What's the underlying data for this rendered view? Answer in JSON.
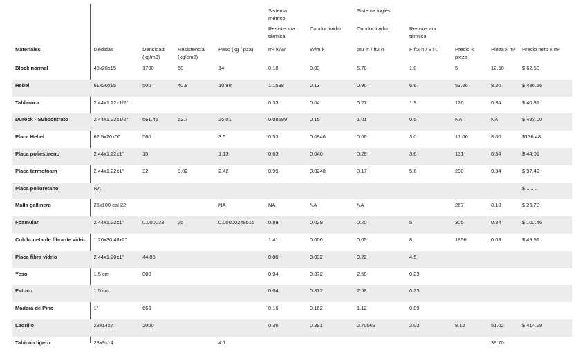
{
  "header": {
    "rows": [
      [
        null,
        null,
        null,
        null,
        null,
        "Sistema métrico",
        null,
        "Sistema inglés",
        null,
        null,
        null,
        null
      ],
      [
        null,
        null,
        null,
        null,
        null,
        "Resistencia térmica",
        "Conductividad",
        "Conductividad",
        "Resistencia térmica",
        null,
        null,
        null
      ],
      [
        "Materiales",
        "Medidas",
        "Densidad (kg/m3)",
        "Resistencia (kg/cm2)",
        "Peso (kg / pza)",
        "m² K/W",
        "W/m k",
        "btu in / ft2 h",
        "F ft2 h / BTU",
        "Precio x pieza",
        "Pieza x m²",
        "Precio neto x m²"
      ]
    ]
  },
  "table": {
    "rows": [
      [
        "Block normal",
        "40x20x15",
        "1700",
        "60",
        "14",
        "0.18",
        "0.83",
        "5.78",
        "1.0",
        "5",
        "12.50",
        "$ 62.50"
      ],
      [
        "Hebel",
        "61x20x15",
        "500",
        "40.8",
        "10.98",
        "1.1538",
        "0.13",
        "0.90",
        "6.6",
        "53.26",
        "8.20",
        "$ 436.56"
      ],
      [
        "Tablaroca",
        "2.44x1.22x1/2\"",
        null,
        null,
        null,
        "0.33",
        "0.04",
        "0.27",
        "1.9",
        "120",
        "0.34",
        "$ 40.31"
      ],
      [
        "Durock - Subcontrato",
        "2.44x1.22x1/2\"",
        "661.46",
        "52.7",
        "25.01",
        "0.08699",
        "0.15",
        "1.01",
        "0.5",
        "NA",
        "NA",
        "$ 493.00"
      ],
      [
        "Placa Hebel",
        "62.5x20x05",
        "560",
        null,
        "3.5",
        "0.53",
        "0.0946",
        "0.66",
        "3.0",
        "17.06",
        "8.00",
        "$136.48"
      ],
      [
        "Placa poliestireno",
        "2.44x1.22x1\"",
        "15",
        null,
        "1.13",
        "0.63",
        "0.040",
        "0.28",
        "3.6",
        "131",
        "0.34",
        "$ 44.01"
      ],
      [
        "Placa termofoam",
        "2.44x1.22x1\"",
        "32",
        "0.02",
        "2.42",
        "0.99",
        "0.0248",
        "0.17",
        "5.6",
        "290",
        "0.34",
        "$ 97.42"
      ],
      [
        "Placa poliuretano",
        "NA",
        null,
        null,
        null,
        null,
        null,
        null,
        null,
        null,
        null,
        "$ ........"
      ],
      [
        "Malla gallinera",
        "25x100 cal 22",
        null,
        null,
        "NA",
        "NA",
        "NA",
        "NA",
        null,
        "267",
        "0.10",
        "$ 26.70"
      ],
      [
        "Foamular",
        "2.44x1.22x1\"",
        "0.000033",
        "25",
        "0.00000249515",
        "0.88",
        "0.029",
        "0.20",
        "5",
        "305",
        "0.34",
        "$ 102.46"
      ],
      [
        "Colchoneta de fibra de vidrio",
        "1.20x30.48x2\"",
        null,
        null,
        null,
        "1.41",
        "0.006",
        "0.05",
        "8",
        "1856",
        "0.03",
        "$ 49.91"
      ],
      [
        "Placa fibra vidrio",
        "2.44x1.20x1\"",
        "44.85",
        null,
        null,
        "0.80",
        "0.032",
        "0.22",
        "4.5",
        null,
        null,
        null
      ],
      [
        "Yeso",
        "1.5 cm",
        "800",
        null,
        null,
        "0.04",
        "0.372",
        "2.58",
        "0.23",
        null,
        null,
        null
      ],
      [
        "Estuco",
        "1.5 cm",
        null,
        null,
        null,
        "0.04",
        "0.372",
        "2.58",
        "0.23",
        null,
        null,
        null
      ],
      [
        "Madera de Pino",
        "1\"",
        "663",
        null,
        null,
        "0.16",
        "0.162",
        "1.12",
        "0.89",
        null,
        null,
        null
      ],
      [
        "Ladrillo",
        "28x14x7",
        "2000",
        null,
        null,
        "0.36",
        "0.391",
        "2.70963",
        "2.03",
        "8.12",
        "51.02",
        "$ 414.29"
      ],
      [
        "Tabicón ligero",
        "28x9x14",
        null,
        null,
        "4.1",
        null,
        null,
        null,
        null,
        null,
        "39.70",
        null
      ]
    ]
  }
}
